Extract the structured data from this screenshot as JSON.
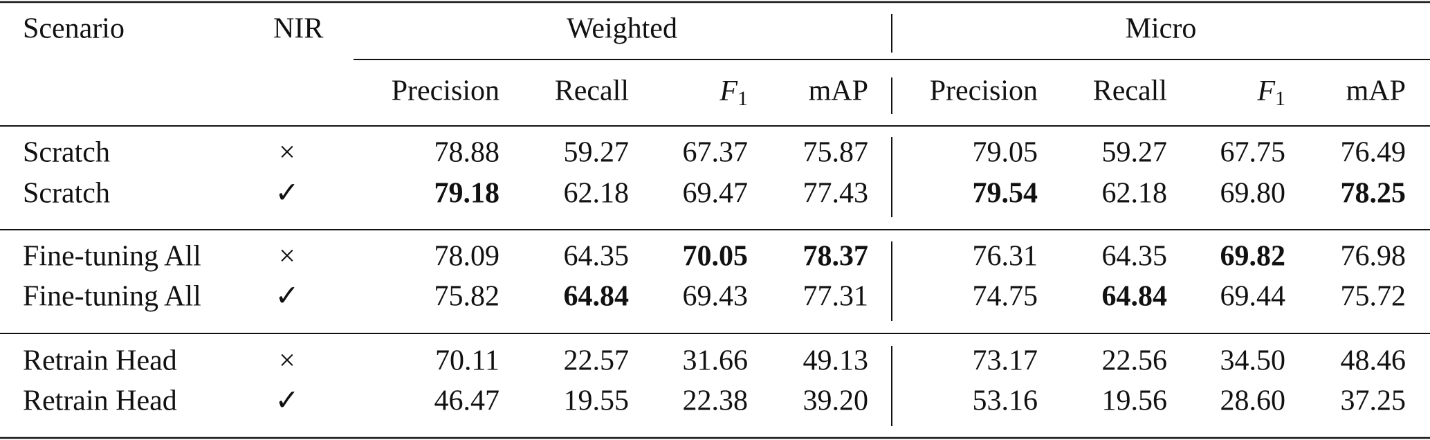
{
  "header": {
    "columns": [
      "Scenario",
      "NIR"
    ],
    "groups": [
      {
        "name": "Weighted",
        "metrics": [
          "Precision",
          "Recall",
          {
            "main": "F",
            "sub": "1"
          },
          "mAP"
        ]
      },
      {
        "name": "Micro",
        "metrics": [
          "Precision",
          "Recall",
          {
            "main": "F",
            "sub": "1"
          },
          "mAP"
        ]
      }
    ]
  },
  "table": {
    "rows": [
      {
        "scenario": "Scratch",
        "nir": "×",
        "cells": [
          "78.88",
          "59.27",
          "67.37",
          "75.87",
          "79.05",
          "59.27",
          "67.75",
          "76.49"
        ],
        "bold": []
      },
      {
        "scenario": "Scratch",
        "nir": "✓",
        "cells": [
          "79.18",
          "62.18",
          "69.47",
          "77.43",
          "79.54",
          "62.18",
          "69.80",
          "78.25"
        ],
        "bold": [
          0,
          4,
          7
        ]
      },
      {
        "scenario": "Fine-tuning All",
        "nir": "×",
        "cells": [
          "78.09",
          "64.35",
          "70.05",
          "78.37",
          "76.31",
          "64.35",
          "69.82",
          "76.98"
        ],
        "bold": [
          2,
          3,
          6
        ]
      },
      {
        "scenario": "Fine-tuning All",
        "nir": "✓",
        "cells": [
          "75.82",
          "64.84",
          "69.43",
          "77.31",
          "74.75",
          "64.84",
          "69.44",
          "75.72"
        ],
        "bold": [
          1,
          5
        ]
      },
      {
        "scenario": "Retrain Head",
        "nir": "×",
        "cells": [
          "70.11",
          "22.57",
          "31.66",
          "49.13",
          "73.17",
          "22.56",
          "34.50",
          "48.46"
        ],
        "bold": []
      },
      {
        "scenario": "Retrain Head",
        "nir": "✓",
        "cells": [
          "46.47",
          "19.55",
          "22.38",
          "39.20",
          "53.16",
          "19.56",
          "28.60",
          "37.25"
        ],
        "bold": []
      }
    ]
  }
}
